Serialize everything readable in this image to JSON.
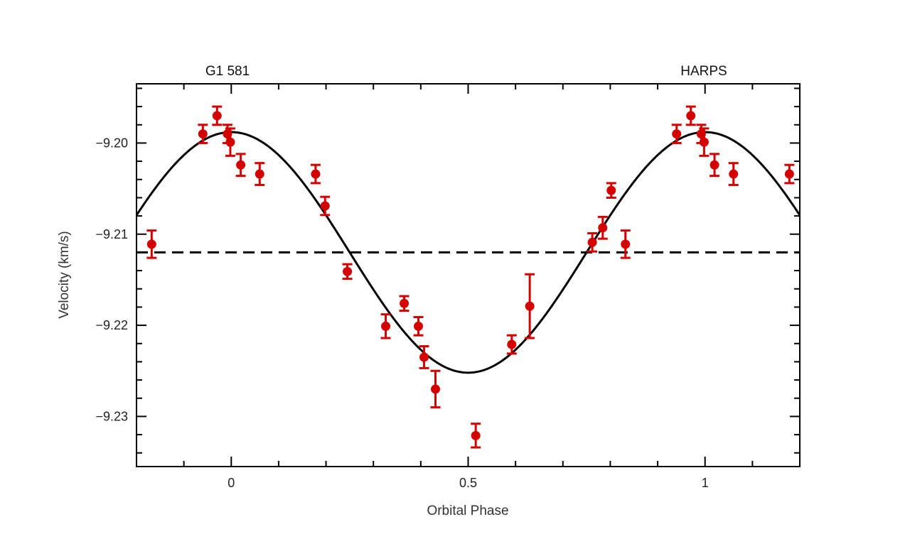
{
  "chart_data": {
    "type": "scatter",
    "title_left": "G1 581",
    "title_right": "HARPS",
    "xlabel": "Orbital Phase",
    "ylabel": "Velocity (km/s)",
    "xlim": [
      -0.2,
      1.2
    ],
    "ylim": [
      -9.2355,
      -9.1935
    ],
    "x_ticks": [
      0,
      0.5,
      1
    ],
    "x_tick_labels": [
      "0",
      "0.5",
      "1"
    ],
    "y_ticks": [
      -9.2,
      -9.21,
      -9.22,
      -9.23
    ],
    "y_tick_labels": [
      "−9.20",
      "−9.21",
      "−9.22",
      "−9.23"
    ],
    "colors": {
      "points": "#d40000",
      "fit": "#000000",
      "mean": "#000000"
    },
    "mean_velocity": -9.212,
    "fit": {
      "name": "",
      "mean": -9.212,
      "amplitude": 0.0132,
      "peak_phase": 0.0
    },
    "series": [
      {
        "name": "",
        "points": [
          {
            "x": -0.168,
            "y": -9.2111,
            "err": 0.0015
          },
          {
            "x": -0.06,
            "y": -9.199,
            "err": 0.001
          },
          {
            "x": -0.03,
            "y": -9.197,
            "err": 0.001
          },
          {
            "x": -0.008,
            "y": -9.199,
            "err": 0.001
          },
          {
            "x": -0.002,
            "y": -9.1999,
            "err": 0.0015
          },
          {
            "x": 0.02,
            "y": -9.2024,
            "err": 0.0012
          },
          {
            "x": 0.06,
            "y": -9.2034,
            "err": 0.0012
          },
          {
            "x": 0.178,
            "y": -9.2034,
            "err": 0.001
          },
          {
            "x": 0.198,
            "y": -9.2069,
            "err": 0.001
          },
          {
            "x": 0.245,
            "y": -9.2141,
            "err": 0.0008
          },
          {
            "x": 0.326,
            "y": -9.2201,
            "err": 0.0013
          },
          {
            "x": 0.365,
            "y": -9.2176,
            "err": 0.0008
          },
          {
            "x": 0.395,
            "y": -9.2201,
            "err": 0.001
          },
          {
            "x": 0.407,
            "y": -9.2235,
            "err": 0.0012
          },
          {
            "x": 0.431,
            "y": -9.227,
            "err": 0.002
          },
          {
            "x": 0.516,
            "y": -9.2321,
            "err": 0.0013
          },
          {
            "x": 0.592,
            "y": -9.2221,
            "err": 0.001
          },
          {
            "x": 0.63,
            "y": -9.2179,
            "err": 0.0035
          },
          {
            "x": 0.762,
            "y": -9.2109,
            "err": 0.001
          },
          {
            "x": 0.784,
            "y": -9.2093,
            "err": 0.0012
          },
          {
            "x": 0.802,
            "y": -9.2052,
            "err": 0.0008
          },
          {
            "x": 0.832,
            "y": -9.2111,
            "err": 0.0015
          },
          {
            "x": 0.94,
            "y": -9.199,
            "err": 0.001
          },
          {
            "x": 0.97,
            "y": -9.197,
            "err": 0.001
          },
          {
            "x": 0.992,
            "y": -9.199,
            "err": 0.001
          },
          {
            "x": 0.998,
            "y": -9.1999,
            "err": 0.0015
          },
          {
            "x": 1.02,
            "y": -9.2024,
            "err": 0.0012
          },
          {
            "x": 1.06,
            "y": -9.2034,
            "err": 0.0012
          },
          {
            "x": 1.178,
            "y": -9.2034,
            "err": 0.001
          }
        ]
      }
    ]
  }
}
